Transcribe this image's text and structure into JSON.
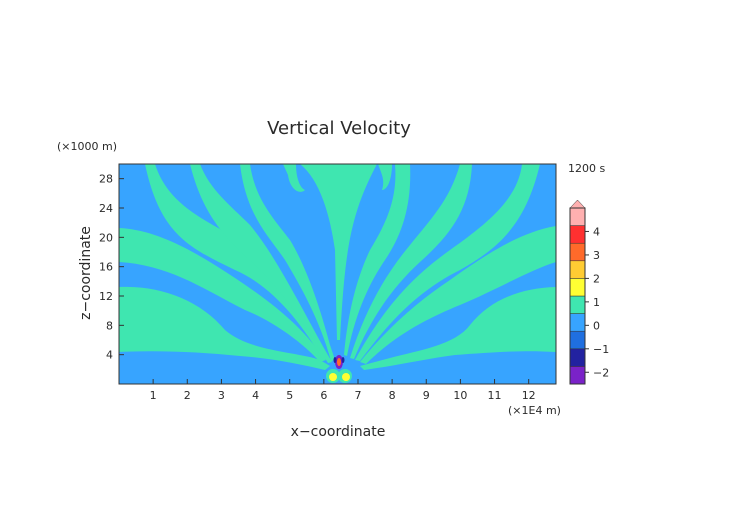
{
  "chart_data": {
    "type": "heatmap",
    "title": "Vertical Velocity",
    "xlabel": "x−coordinate",
    "ylabel": "z−coordinate",
    "x_unit": "(×1E4 m)",
    "y_unit": "(×1000 m)",
    "time_label": "1200 s",
    "xlim": [
      0,
      12.8
    ],
    "ylim": [
      0,
      30
    ],
    "x_ticks": [
      "1",
      "2",
      "3",
      "4",
      "5",
      "6",
      "7",
      "8",
      "9",
      "10",
      "11",
      "12"
    ],
    "y_ticks": [
      "4",
      "8",
      "12",
      "16",
      "20",
      "24",
      "28"
    ],
    "colorbar": {
      "labels": [
        "4",
        "3",
        "2",
        "1",
        "0",
        "−1",
        "−2"
      ],
      "label_values": [
        4,
        3,
        2,
        1,
        0,
        -1,
        -2
      ],
      "range": [
        -2.5,
        5
      ],
      "colors": [
        "#7a22c8",
        "#2222a0",
        "#1f6fe0",
        "#37a4ff",
        "#3fe6b0",
        "#ffff33",
        "#ffcc33",
        "#ff6a2a",
        "#ff3030",
        "#ffb0b0"
      ]
    },
    "fill": {
      "background_zero_negative": "#37a4ff",
      "near_zero_positive": "#3fe6b0"
    },
    "source_location": {
      "x": 6.4,
      "z": 1.5
    },
    "grid": false,
    "legend_placement": "right"
  }
}
